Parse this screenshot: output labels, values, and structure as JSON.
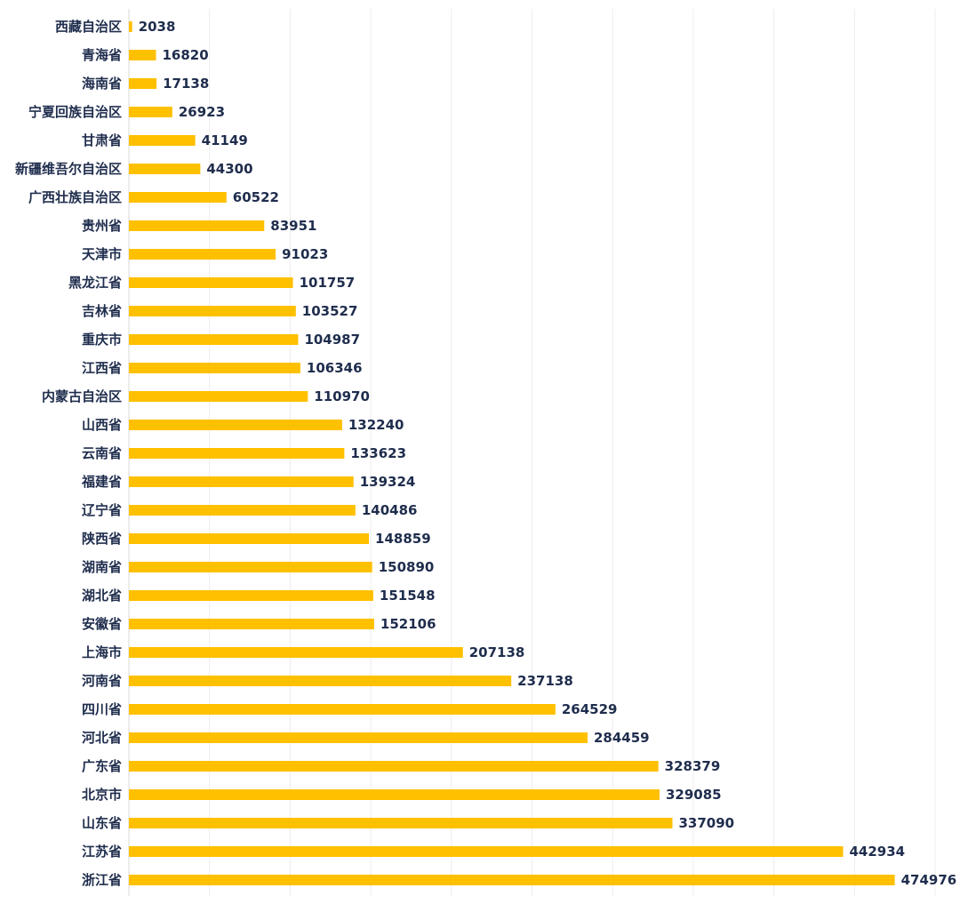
{
  "chart_data": {
    "type": "bar",
    "orientation": "horizontal",
    "title": "",
    "xlabel": "",
    "ylabel": "",
    "xlim": [
      0,
      500000
    ],
    "grid": true,
    "bar_color": "#FFC000",
    "label_color": "#1F2D4D",
    "categories": [
      "西藏自治区",
      "青海省",
      "海南省",
      "宁夏回族自治区",
      "甘肃省",
      "新疆维吾尔自治区",
      "广西壮族自治区",
      "贵州省",
      "天津市",
      "黑龙江省",
      "吉林省",
      "重庆市",
      "江西省",
      "内蒙古自治区",
      "山西省",
      "云南省",
      "福建省",
      "辽宁省",
      "陕西省",
      "湖南省",
      "湖北省",
      "安徽省",
      "上海市",
      "河南省",
      "四川省",
      "河北省",
      "广东省",
      "北京市",
      "山东省",
      "江苏省",
      "浙江省"
    ],
    "values": [
      2038,
      16820,
      17138,
      26923,
      41149,
      44300,
      60522,
      83951,
      91023,
      101757,
      103527,
      104987,
      106346,
      110970,
      132240,
      133623,
      139324,
      140486,
      148859,
      150890,
      151548,
      152106,
      207138,
      237138,
      264529,
      284459,
      328379,
      329085,
      337090,
      442934,
      474976
    ]
  }
}
